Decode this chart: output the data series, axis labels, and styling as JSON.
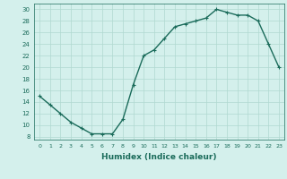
{
  "x": [
    0,
    1,
    2,
    3,
    4,
    5,
    6,
    7,
    8,
    9,
    10,
    11,
    12,
    13,
    14,
    15,
    16,
    17,
    18,
    19,
    20,
    21,
    22,
    23
  ],
  "y": [
    15,
    13.5,
    12,
    10.5,
    9.5,
    8.5,
    8.5,
    8.5,
    11,
    17,
    22,
    23,
    25,
    27,
    27.5,
    28,
    28.5,
    30,
    29.5,
    29,
    29,
    28,
    24,
    20
  ],
  "line_color": "#1a6b5a",
  "marker": "+",
  "marker_size": 3.5,
  "linewidth": 1.0,
  "background_color": "#d4f0ec",
  "grid_color": "#b0d8d0",
  "xlabel": "Humidex (Indice chaleur)",
  "xlabel_fontsize": 6.5,
  "ytick_labels": [
    "8",
    "10",
    "12",
    "14",
    "16",
    "18",
    "20",
    "22",
    "24",
    "26",
    "28",
    "30"
  ],
  "ytick_values": [
    8,
    10,
    12,
    14,
    16,
    18,
    20,
    22,
    24,
    26,
    28,
    30
  ],
  "xlim": [
    -0.5,
    23.5
  ],
  "ylim": [
    7.5,
    31
  ]
}
